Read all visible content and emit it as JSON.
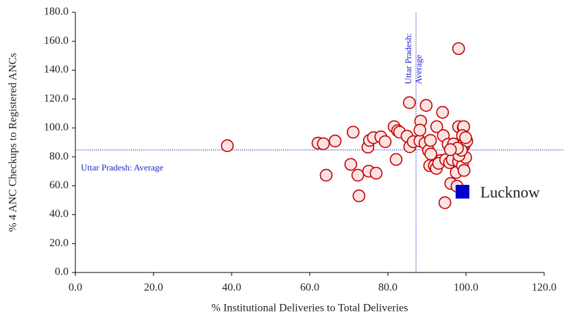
{
  "chart_data": {
    "type": "scatter",
    "x_label": "% Institutional Deliveries to Total Deliveries",
    "y_label": "% 4 ANC Checkups to Registered ANCs",
    "xlim": [
      0,
      120
    ],
    "ylim": [
      0,
      180
    ],
    "xticks": [
      {
        "value": 0,
        "label": "0.0"
      },
      {
        "value": 20,
        "label": "20.0"
      },
      {
        "value": 40,
        "label": "40.0"
      },
      {
        "value": 60,
        "label": "60.0"
      },
      {
        "value": 80,
        "label": "80.0"
      },
      {
        "value": 100,
        "label": "100.0"
      },
      {
        "value": 120,
        "label": "120.0"
      }
    ],
    "yticks": [
      {
        "value": 0,
        "label": "0.0"
      },
      {
        "value": 20,
        "label": "20.0"
      },
      {
        "value": 40,
        "label": "40.0"
      },
      {
        "value": 60,
        "label": "60.0"
      },
      {
        "value": 80,
        "label": "80.0"
      },
      {
        "value": 100,
        "label": "100.0"
      },
      {
        "value": 120,
        "label": "120.0"
      },
      {
        "value": 140,
        "label": "140.0"
      },
      {
        "value": 160,
        "label": "160.0"
      },
      {
        "value": 180,
        "label": "180.0"
      }
    ],
    "color": "#c00000",
    "fill": "#fbe3e3",
    "x": [
      38.9,
      62.1,
      63.5,
      66.5,
      64.2,
      71.1,
      70.5,
      72.3,
      72.6,
      74.9,
      75.3,
      76.3,
      75.1,
      77.0,
      78.2,
      79.3,
      81.6,
      82.5,
      83.0,
      82.1,
      85.5,
      84.9,
      85.6,
      86.5,
      88.2,
      88.4,
      88.2,
      89.5,
      89.8,
      90.4,
      90.9,
      92.5,
      94.0,
      94.2,
      90.7,
      91.9,
      92.4,
      93.5,
      93.0,
      95.4,
      94.8,
      95.8,
      96.5,
      96.8,
      96.1,
      97.5,
      94.6,
      98.1,
      98.1,
      99.3,
      99.4,
      99.1,
      99.5,
      99.1,
      98.6,
      99.1,
      98.1,
      97.7,
      99.1,
      99.5,
      99.9,
      100.2,
      99.9,
      98.2,
      98.8,
      97.8,
      96.0,
      91.0
    ],
    "values": [
      87.7,
      89.5,
      89.1,
      91.0,
      67.3,
      97.1,
      74.8,
      67.3,
      53.0,
      86.7,
      91.4,
      93.3,
      70.1,
      68.7,
      93.8,
      90.5,
      100.9,
      98.1,
      97.1,
      78.2,
      117.5,
      94.3,
      87.0,
      90.5,
      91.0,
      104.7,
      98.5,
      89.5,
      115.6,
      84.3,
      91.4,
      100.9,
      110.8,
      94.7,
      73.9,
      73.9,
      72.0,
      77.5,
      75.5,
      88.7,
      78.0,
      76.0,
      78.0,
      88.9,
      61.6,
      69.2,
      48.3,
      154.9,
      100.9,
      100.4,
      100.9,
      94.7,
      87.7,
      87.7,
      82.9,
      79.6,
      76.8,
      59.7,
      73.9,
      70.6,
      79.6,
      90.9,
      93.3,
      81.0,
      84.5,
      86.0,
      85.0,
      82.0
    ],
    "reference_lines": [
      {
        "axis": "x",
        "value": 87.2,
        "label": [
          "Uttar Pradesh:",
          "Average"
        ],
        "color": "#2222cc"
      },
      {
        "axis": "y",
        "value": 84.8,
        "label": [
          "Uttar Pradesh: Average"
        ],
        "color": "#2222cc"
      }
    ],
    "highlight": {
      "label": "Lucknow",
      "x": 99.1,
      "y": 55.9,
      "color": "#0000cc"
    }
  }
}
